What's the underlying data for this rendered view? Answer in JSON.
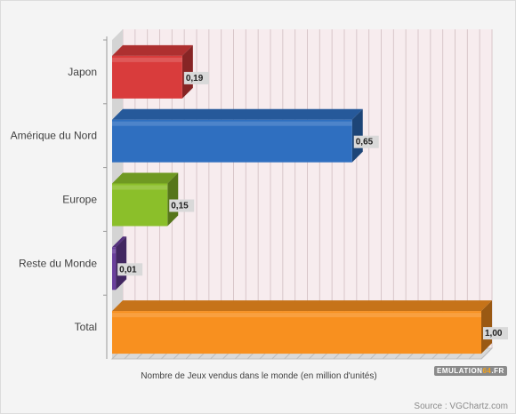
{
  "chart_data": {
    "type": "bar",
    "orientation": "horizontal",
    "categories": [
      "Japon",
      "Amérique du Nord",
      "Europe",
      "Reste du Monde",
      "Total"
    ],
    "values": [
      0.19,
      0.65,
      0.15,
      0.01,
      1.0
    ],
    "value_labels": [
      "0,19",
      "0,65",
      "0,15",
      "0,01",
      "1,00"
    ],
    "xlabel": "Nombre de Jeux vendus dans le monde (en million d'unités)",
    "xlim": [
      0,
      1.0
    ],
    "grid": true,
    "style": "3d",
    "colors": [
      "#d93c3c",
      "#2f6fc0",
      "#8bbf2a",
      "#6a3f9c",
      "#f8901f"
    ]
  },
  "footer": {
    "logo_main": "EMULATION",
    "logo_accent": "64",
    "logo_suffix": ".FR",
    "source": "Source : VGChartz.com"
  }
}
